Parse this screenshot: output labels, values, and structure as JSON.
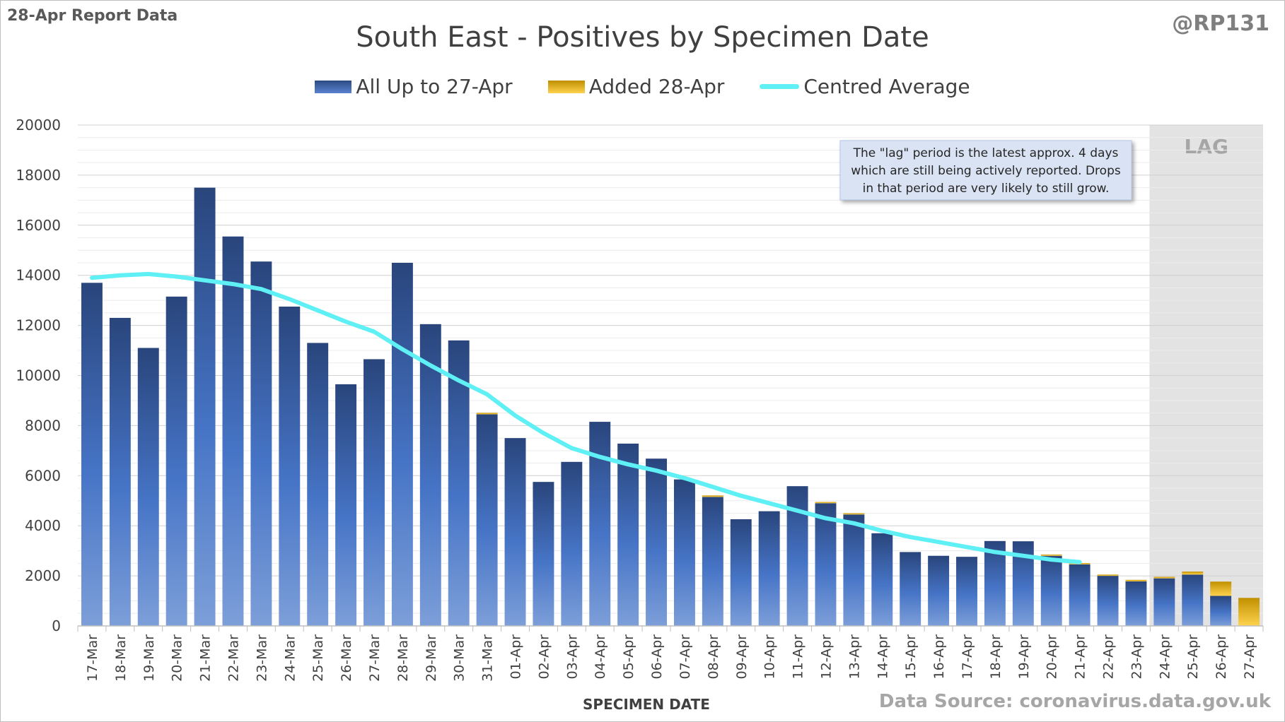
{
  "header": {
    "report_label": "28-Apr Report Data",
    "handle": "@RP131",
    "source": "Data Source: coronavirus.data.gov.uk"
  },
  "chart_data": {
    "type": "bar",
    "title": "South East - Positives by Specimen Date",
    "xlabel": "SPECIMEN DATE",
    "ylabel": "",
    "ylim": [
      0,
      20000
    ],
    "yticks": [
      0,
      2000,
      4000,
      6000,
      8000,
      10000,
      12000,
      14000,
      16000,
      18000,
      20000
    ],
    "grid": true,
    "legend_position": "top",
    "stacked": true,
    "categories": [
      "17-Mar",
      "18-Mar",
      "19-Mar",
      "20-Mar",
      "21-Mar",
      "22-Mar",
      "23-Mar",
      "24-Mar",
      "25-Mar",
      "26-Mar",
      "27-Mar",
      "28-Mar",
      "29-Mar",
      "30-Mar",
      "31-Mar",
      "01-Apr",
      "02-Apr",
      "03-Apr",
      "04-Apr",
      "05-Apr",
      "06-Apr",
      "07-Apr",
      "08-Apr",
      "09-Apr",
      "10-Apr",
      "11-Apr",
      "12-Apr",
      "13-Apr",
      "14-Apr",
      "15-Apr",
      "16-Apr",
      "17-Apr",
      "18-Apr",
      "19-Apr",
      "20-Apr",
      "21-Apr",
      "22-Apr",
      "23-Apr",
      "24-Apr",
      "25-Apr",
      "26-Apr",
      "27-Apr"
    ],
    "series": [
      {
        "name": "All Up to 27-Apr",
        "color": "#3a62b0",
        "values": [
          13700,
          12300,
          11100,
          13150,
          17500,
          15550,
          14550,
          12750,
          11300,
          9650,
          10650,
          14500,
          12050,
          11400,
          8450,
          7500,
          5750,
          6550,
          8150,
          7280,
          6680,
          5850,
          5150,
          4260,
          4580,
          5580,
          4900,
          4450,
          3700,
          2950,
          2800,
          2760,
          3390,
          3380,
          2800,
          2460,
          2000,
          1780,
          1900,
          2050,
          1200,
          0
        ]
      },
      {
        "name": "Added 28-Apr",
        "color": "#f2b807",
        "values": [
          0,
          0,
          0,
          0,
          0,
          0,
          0,
          0,
          0,
          0,
          0,
          0,
          0,
          0,
          60,
          0,
          0,
          0,
          0,
          0,
          0,
          0,
          60,
          0,
          0,
          0,
          50,
          50,
          0,
          0,
          0,
          0,
          0,
          0,
          50,
          50,
          50,
          60,
          60,
          120,
          570,
          1120
        ]
      },
      {
        "name": "Centred Average",
        "type": "line",
        "color": "#5ff0f5",
        "values": [
          13900,
          14000,
          14050,
          13950,
          13800,
          13650,
          13450,
          13050,
          12600,
          12150,
          11750,
          11050,
          10400,
          9800,
          9250,
          8400,
          7700,
          7100,
          6750,
          6450,
          6200,
          5900,
          5550,
          5200,
          4900,
          4600,
          4300,
          4100,
          3800,
          3550,
          3350,
          3150,
          2950,
          2800,
          2650,
          2550,
          null,
          null,
          null,
          null,
          null,
          null
        ]
      }
    ],
    "lag": {
      "label": "LAG",
      "from": "24-Apr",
      "to": "27-Apr"
    },
    "annotation": {
      "lines": [
        "The \"lag\" period is the latest approx. 4 days",
        "which are still being actively reported.  Drops",
        "in that period are very likely to still grow."
      ]
    }
  }
}
